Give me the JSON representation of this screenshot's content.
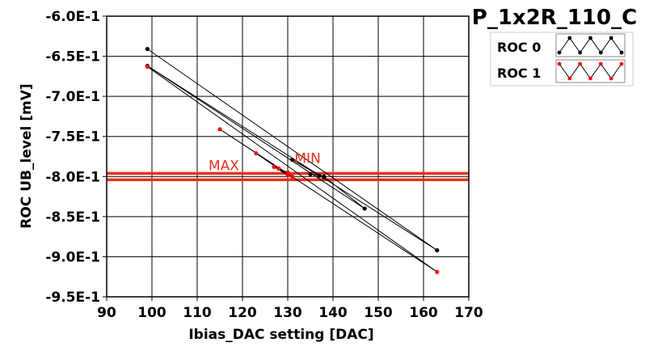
{
  "chart_data": {
    "type": "line",
    "title": "P_1x2R_110_C",
    "xlabel": "Ibias_DAC setting [DAC]",
    "ylabel": "ROC UB_level [mV]",
    "xlim": [
      90,
      170
    ],
    "ylim": [
      -0.95,
      -0.6
    ],
    "x_ticks": [
      90,
      100,
      110,
      120,
      130,
      140,
      150,
      160,
      170
    ],
    "x_tick_labels": [
      "90",
      "100",
      "110",
      "120",
      "130",
      "140",
      "150",
      "160",
      "170"
    ],
    "y_ticks": [
      -0.6,
      -0.65,
      -0.7,
      -0.75,
      -0.8,
      -0.85,
      -0.9,
      -0.95
    ],
    "y_tick_labels": [
      "-6.0E-1",
      "-6.5E-1",
      "-7.0E-1",
      "-7.5E-1",
      "-8.0E-1",
      "-8.5E-1",
      "-9.0E-1",
      "-9.5E-1"
    ],
    "grid": true,
    "legend_position": "top-right",
    "series": [
      {
        "name": "ROC 0",
        "color": "#000000",
        "x": [
          99,
          163,
          99,
          147,
          138,
          135,
          137,
          131,
          138
        ],
        "y": [
          -0.641,
          -0.892,
          -0.662,
          -0.84,
          -0.8,
          -0.797,
          -0.799,
          -0.779,
          -0.801
        ]
      },
      {
        "name": "ROC 1",
        "color": "#ff0000",
        "x": [
          99,
          163,
          115,
          131,
          128,
          123,
          130,
          127,
          130
        ],
        "y": [
          -0.663,
          -0.919,
          -0.741,
          -0.8,
          -0.79,
          -0.771,
          -0.798,
          -0.788,
          -0.795
        ]
      }
    ],
    "reference_lines": [
      {
        "label": "MAX",
        "y": -0.796,
        "color": "#e8321e"
      },
      {
        "label": "MIN",
        "y": -0.804,
        "color": "#e8321e"
      }
    ],
    "annotations": [
      {
        "text": "MAX",
        "x": 112.5,
        "y": -0.792,
        "color": "#e8321e"
      },
      {
        "text": "MIN",
        "x": 131.5,
        "y": -0.783,
        "color": "#e8321e"
      }
    ]
  }
}
